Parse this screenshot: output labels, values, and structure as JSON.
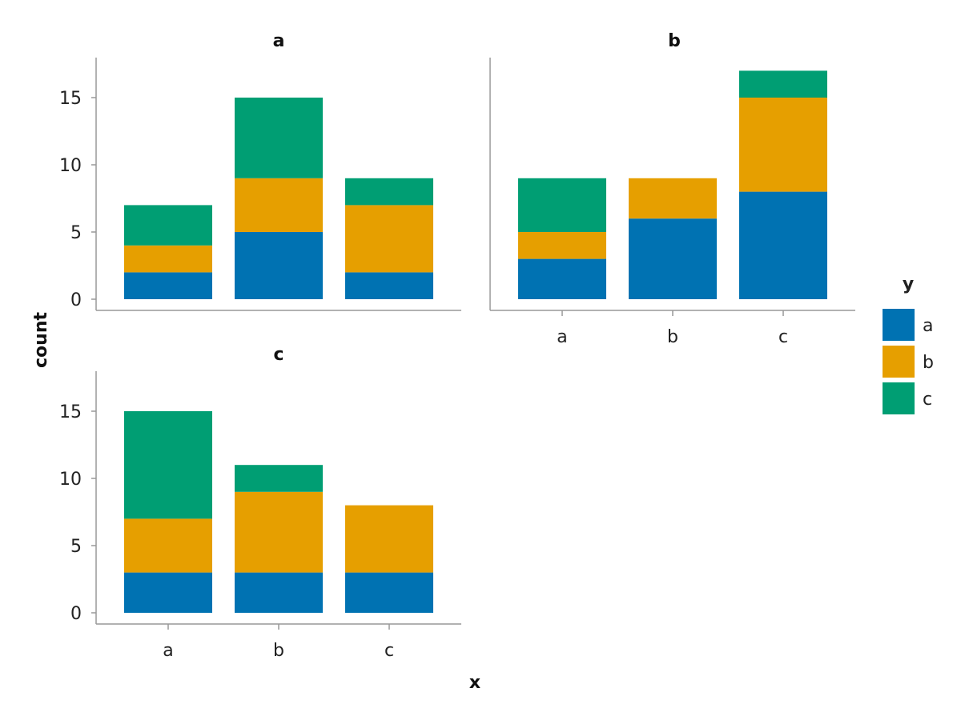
{
  "chart_data": {
    "type": "bar",
    "stacked": true,
    "facet_variable": "panel",
    "xlabel": "x",
    "ylabel": "count",
    "ylim": [
      0,
      17.9
    ],
    "yticks": [
      0,
      5,
      10,
      15
    ],
    "categories": [
      "a",
      "b",
      "c"
    ],
    "legend": {
      "title": "y",
      "placement": "right",
      "entries": [
        {
          "label": "a",
          "color": "#0072b2"
        },
        {
          "label": "b",
          "color": "#e69f00"
        },
        {
          "label": "c",
          "color": "#009e73"
        }
      ]
    },
    "panels": [
      {
        "title": "a",
        "series": [
          {
            "name": "a",
            "values": [
              2,
              5,
              2
            ]
          },
          {
            "name": "b",
            "values": [
              2,
              4,
              5
            ]
          },
          {
            "name": "c",
            "values": [
              3,
              6,
              2
            ]
          }
        ]
      },
      {
        "title": "b",
        "series": [
          {
            "name": "a",
            "values": [
              3,
              6,
              8
            ]
          },
          {
            "name": "b",
            "values": [
              2,
              3,
              7
            ]
          },
          {
            "name": "c",
            "values": [
              4,
              0,
              2
            ]
          }
        ]
      },
      {
        "title": "c",
        "series": [
          {
            "name": "a",
            "values": [
              3,
              3,
              3
            ]
          },
          {
            "name": "b",
            "values": [
              4,
              6,
              5
            ]
          },
          {
            "name": "c",
            "values": [
              8,
              2,
              0
            ]
          }
        ]
      }
    ]
  }
}
